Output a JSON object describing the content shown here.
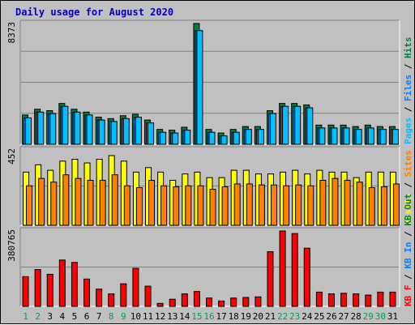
{
  "chart_data": {
    "type": "bar",
    "title": "Daily usage for August 2020",
    "categories": [
      "1",
      "2",
      "3",
      "4",
      "5",
      "6",
      "7",
      "8",
      "9",
      "10",
      "11",
      "12",
      "13",
      "14",
      "15",
      "16",
      "17",
      "18",
      "19",
      "20",
      "21",
      "22",
      "23",
      "24",
      "25",
      "26",
      "27",
      "28",
      "29",
      "30",
      "31"
    ],
    "weekend_days": [
      "1",
      "2",
      "8",
      "9",
      "15",
      "16",
      "22",
      "23",
      "29",
      "30"
    ],
    "panels": [
      {
        "name": "pages_files_hits",
        "ymax_label": "8373",
        "ymax": 8373,
        "legend": [
          {
            "text": "Pages",
            "color": "#00c0ff"
          },
          {
            "text": "/",
            "color": "#000000"
          },
          {
            "text": "Files",
            "color": "#0080ff"
          },
          {
            "text": "/",
            "color": "#000000"
          },
          {
            "text": "Hits",
            "color": "#008040"
          }
        ],
        "series": [
          {
            "name": "Hits",
            "color": "#008040",
            "values": [
              2030,
              2430,
              2330,
              2830,
              2430,
              2230,
              1880,
              1780,
              1980,
              2080,
              1680,
              1030,
              980,
              1180,
              8373,
              1030,
              780,
              1030,
              1230,
              1230,
              2330,
              2830,
              2830,
              2730,
              1330,
              1330,
              1330,
              1230,
              1330,
              1230,
              1230
            ]
          },
          {
            "name": "Files",
            "color": "#0080ff",
            "values": [
              1830,
              2230,
              2130,
              2630,
              2230,
              2030,
              1680,
              1580,
              1780,
              1880,
              1480,
              830,
              780,
              980,
              7880,
              830,
              580,
              830,
              1030,
              1030,
              2130,
              2630,
              2630,
              2530,
              1130,
              1130,
              1130,
              1030,
              1130,
              1030,
              1030
            ]
          },
          {
            "name": "Pages",
            "color": "#00c0ff",
            "values": [
              1830,
              2230,
              2130,
              2630,
              2230,
              2030,
              1680,
              1580,
              1780,
              1880,
              1480,
              830,
              780,
              980,
              7880,
              830,
              580,
              830,
              1030,
              1030,
              2130,
              2630,
              2630,
              2530,
              1130,
              1130,
              1130,
              1030,
              1130,
              1030,
              1030
            ]
          }
        ]
      },
      {
        "name": "visits_sites",
        "ymax_label": "452",
        "ymax": 452,
        "legend": [
          {
            "text": "Visits",
            "color": "#ffff00"
          },
          {
            "text": "/",
            "color": "#000000"
          },
          {
            "text": "Sites",
            "color": "#ff8000"
          }
        ],
        "series": [
          {
            "name": "Visits",
            "color": "#ffff00",
            "values": [
              319,
              363,
              330,
              385,
              396,
              374,
              396,
              418,
              385,
              319,
              346,
              319,
              270,
              308,
              319,
              286,
              286,
              330,
              330,
              308,
              308,
              319,
              330,
              308,
              330,
              319,
              319,
              286,
              319,
              319,
              319
            ]
          },
          {
            "name": "Sites",
            "color": "#ff8000",
            "values": [
              237,
              281,
              259,
              303,
              281,
              270,
              270,
              303,
              237,
              226,
              270,
              237,
              231,
              237,
              237,
              216,
              231,
              248,
              248,
              242,
              242,
              237,
              242,
              237,
              270,
              281,
              270,
              259,
              226,
              231,
              248
            ]
          }
        ]
      },
      {
        "name": "kbf_kbin_kbout",
        "ymax_label": "380765",
        "ymax": 380765,
        "legend": [
          {
            "text": "KB F",
            "color": "#ff0000"
          },
          {
            "text": "/",
            "color": "#000000"
          },
          {
            "text": "KB In",
            "color": "#0080ff"
          },
          {
            "text": "/",
            "color": "#000000"
          },
          {
            "text": "KB Out",
            "color": "#008040"
          }
        ],
        "series": [
          {
            "name": "KB F",
            "color": "#ff0000",
            "values": [
              150000,
              186000,
              162000,
              234000,
              222000,
              138000,
              87000,
              63000,
              114000,
              192000,
              102000,
              15000,
              36000,
              63000,
              75000,
              42000,
              27000,
              42000,
              45000,
              48000,
              276000,
              380765,
              368000,
              294000,
              72000,
              63000,
              66000,
              63000,
              57000,
              72000,
              72000
            ]
          }
        ]
      }
    ]
  }
}
